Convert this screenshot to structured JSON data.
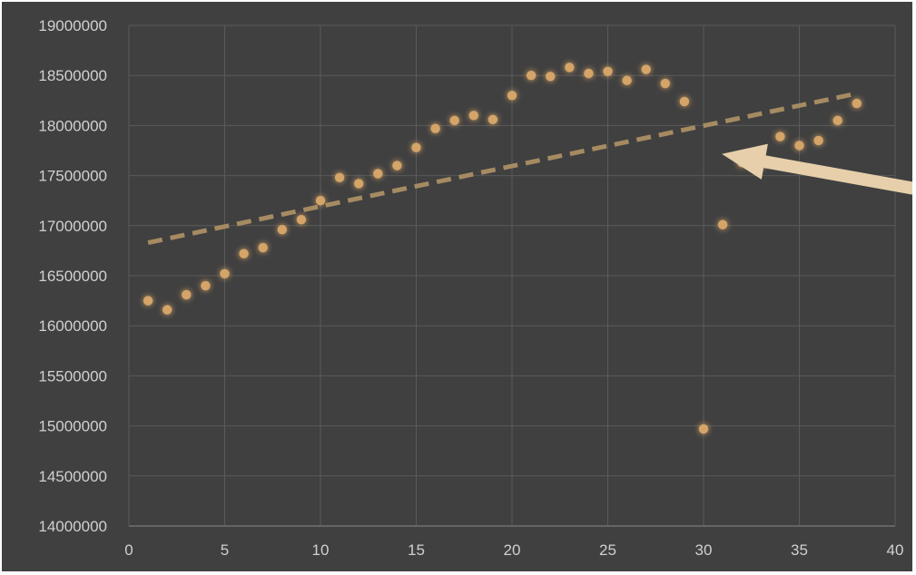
{
  "chart_data": {
    "type": "scatter",
    "title": "",
    "xlabel": "",
    "ylabel": "",
    "xlim": [
      0,
      40
    ],
    "ylim": [
      14000000,
      19000000
    ],
    "x_ticks": [
      "0",
      "5",
      "10",
      "15",
      "20",
      "25",
      "30",
      "35",
      "40"
    ],
    "y_ticks": [
      "14000000",
      "14500000",
      "15000000",
      "15500000",
      "16000000",
      "16500000",
      "17000000",
      "17500000",
      "18000000",
      "18500000",
      "19000000"
    ],
    "grid": true,
    "legend": "none",
    "series": [
      {
        "x": [
          1,
          2,
          3,
          4,
          5,
          6,
          7,
          8,
          9,
          10,
          11,
          12,
          13,
          14,
          15,
          16,
          17,
          18,
          19,
          20,
          21,
          22,
          23,
          24,
          25,
          26,
          27,
          28,
          29,
          30,
          31,
          32,
          33,
          34,
          35,
          36,
          37,
          38
        ],
        "y": [
          16250000,
          16160000,
          16310000,
          16400000,
          16520000,
          16720000,
          16780000,
          16960000,
          17060000,
          17250000,
          17480000,
          17420000,
          17520000,
          17600000,
          17780000,
          17970000,
          18050000,
          18100000,
          18060000,
          18300000,
          18500000,
          18490000,
          18580000,
          18520000,
          18540000,
          18450000,
          18560000,
          18420000,
          18240000,
          14970000,
          17010000,
          17630000,
          17620000,
          17890000,
          17800000,
          17850000,
          18050000,
          18220000
        ]
      }
    ],
    "trendline": {
      "type": "linear",
      "x": [
        1,
        38
      ],
      "y": [
        16830000,
        18320000
      ]
    },
    "annotation": {
      "type": "arrow",
      "points_to": {
        "x": 31,
        "y": 17680000
      }
    },
    "colors": {
      "background": "#404040",
      "gridline": "#5a5a5a",
      "axis_line": "#7a7a7a",
      "marker": "#d4a468",
      "trendline": "#a68b62",
      "arrow": "#e6cfaa"
    }
  }
}
